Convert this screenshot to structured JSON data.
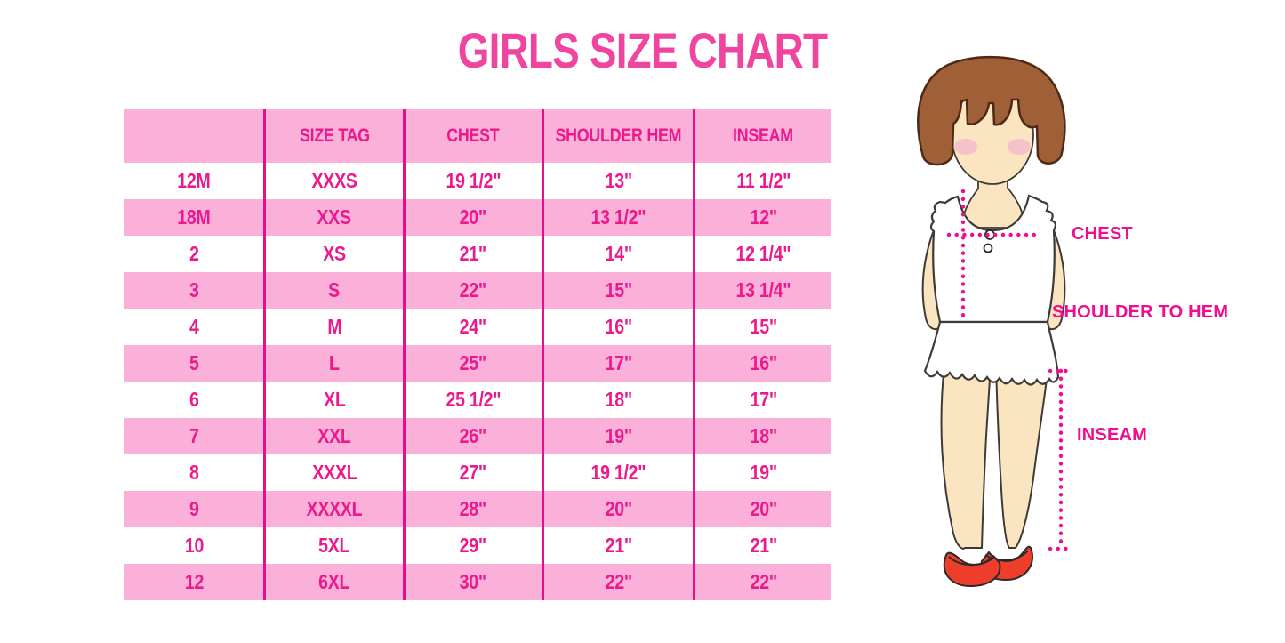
{
  "title": "GIRLS SIZE CHART",
  "chart_data": {
    "type": "table",
    "title": "GIRLS SIZE CHART",
    "columns": [
      "",
      "SIZE TAG",
      "CHEST",
      "SHOULDER HEM",
      "INSEAM"
    ],
    "rows": [
      [
        "12M",
        "XXXS",
        "19 1/2\"",
        "13\"",
        "11 1/2\""
      ],
      [
        "18M",
        "XXS",
        "20\"",
        "13 1/2\"",
        "12\""
      ],
      [
        "2",
        "XS",
        "21\"",
        "14\"",
        "12 1/4\""
      ],
      [
        "3",
        "S",
        "22\"",
        "15\"",
        "13 1/4\""
      ],
      [
        "4",
        "M",
        "24\"",
        "16\"",
        "15\""
      ],
      [
        "5",
        "L",
        "25\"",
        "17\"",
        "16\""
      ],
      [
        "6",
        "XL",
        "25 1/2\"",
        "18\"",
        "17\""
      ],
      [
        "7",
        "XXL",
        "26\"",
        "19\"",
        "18\""
      ],
      [
        "8",
        "XXXL",
        "27\"",
        "19 1/2\"",
        "19\""
      ],
      [
        "9",
        "XXXXL",
        "28\"",
        "20\"",
        "20\""
      ],
      [
        "10",
        "5XL",
        "29\"",
        "21\"",
        "21\""
      ],
      [
        "12",
        "6XL",
        "30\"",
        "22\"",
        "22\""
      ]
    ],
    "row_background_pattern": "header pink, then alternating white/pink starting white",
    "legend_position": "none",
    "grid": "vertical magenta column dividers only"
  },
  "diagram": {
    "figure": "girl-measurement-illustration",
    "labels": {
      "chest": "CHEST",
      "shoulder_to_hem": "SHOULDER TO HEM",
      "inseam": "INSEAM"
    }
  },
  "colors": {
    "row_pink": "#FBB0DA",
    "divider_magenta": "#E50F8A",
    "table_text_magenta": "#EC188C",
    "title_pink": "#F0459E",
    "label_magenta": "#F00E90",
    "hair_brown": "#9F5F37",
    "skin": "#FBE5C0",
    "blush_pink": "#F5BCCB",
    "shoe_red": "#EE3D2B"
  }
}
